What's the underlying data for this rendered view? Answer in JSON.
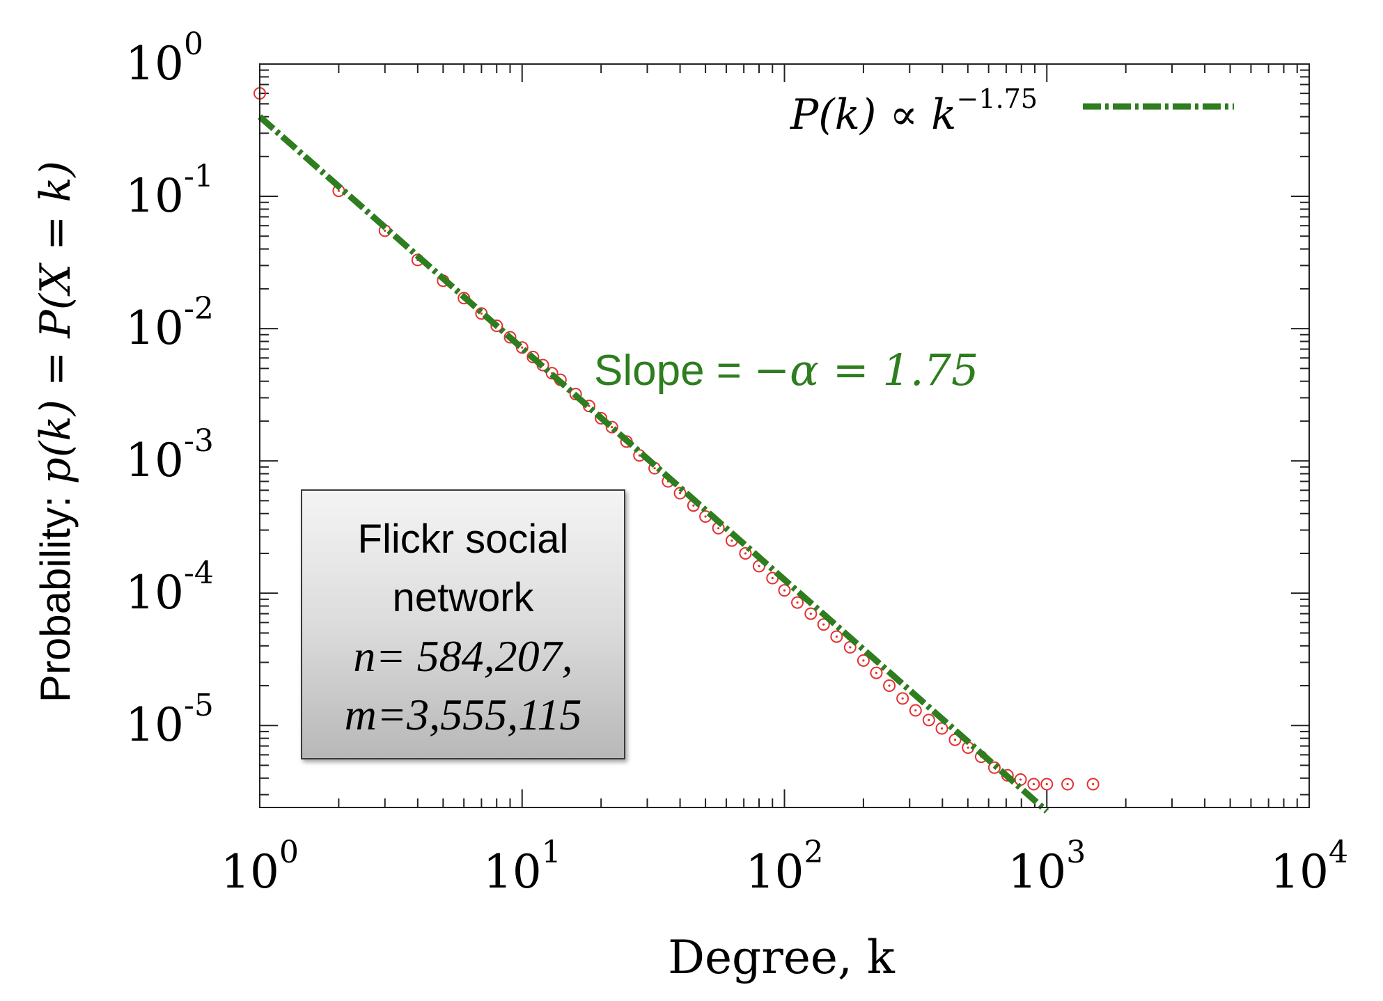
{
  "chart_data": {
    "type": "scatter",
    "xscale": "log",
    "yscale": "log",
    "xlim": [
      1,
      10000
    ],
    "ylim": [
      2.4e-06,
      1
    ],
    "x_ticks": [
      {
        "base": "10",
        "exp": "0"
      },
      {
        "base": "10",
        "exp": "1"
      },
      {
        "base": "10",
        "exp": "2"
      },
      {
        "base": "10",
        "exp": "3"
      },
      {
        "base": "10",
        "exp": "4"
      }
    ],
    "y_ticks": [
      {
        "base": "10",
        "exp": "0"
      },
      {
        "base": "10",
        "exp": "-1"
      },
      {
        "base": "10",
        "exp": "-2"
      },
      {
        "base": "10",
        "exp": "-3"
      },
      {
        "base": "10",
        "exp": "-4"
      },
      {
        "base": "10",
        "exp": "-5"
      }
    ],
    "xlabel": "Degree, k",
    "ylabel_prefix": "Probability: ",
    "ylabel_math": "p(k)  =  P(X = k)",
    "legend": {
      "label": "P(k) ∝ k",
      "label_exp": "−1.75",
      "color": "#2e7d1f",
      "placement": "top-right"
    },
    "fit_line": {
      "exponent": -1.75,
      "prefactor": 0.4,
      "x_range": [
        1,
        1000
      ],
      "color": "#2e7d1f",
      "style": "dash-dot"
    },
    "annotation": {
      "text_prefix": "Slope  = ",
      "text_math": "−α = 1.75",
      "color": "#2e7d1f"
    },
    "info_box": {
      "line1": "Flickr social",
      "line2": "network",
      "line3": "n= 584,207,",
      "line4": "m=3,555,115"
    },
    "series": [
      {
        "marker": "open-circle",
        "color": "#e53030",
        "points": [
          [
            1,
            0.6
          ],
          [
            2,
            0.11
          ],
          [
            3,
            0.055
          ],
          [
            4,
            0.033
          ],
          [
            5,
            0.023
          ],
          [
            6,
            0.017
          ],
          [
            7,
            0.013
          ],
          [
            8,
            0.0105
          ],
          [
            9,
            0.0086
          ],
          [
            10,
            0.0072
          ],
          [
            11,
            0.0061
          ],
          [
            12,
            0.0053
          ],
          [
            13,
            0.0046
          ],
          [
            14,
            0.0041
          ],
          [
            16,
            0.0032
          ],
          [
            18,
            0.0026
          ],
          [
            20,
            0.0021
          ],
          [
            22,
            0.0018
          ],
          [
            25,
            0.0014
          ],
          [
            28,
            0.0011
          ],
          [
            32,
            0.00088
          ],
          [
            36,
            0.0007
          ],
          [
            40,
            0.00057
          ],
          [
            45,
            0.00046
          ],
          [
            50,
            0.00038
          ],
          [
            56,
            0.00031
          ],
          [
            63,
            0.00025
          ],
          [
            71,
            0.0002
          ],
          [
            80,
            0.00016
          ],
          [
            90,
            0.00013
          ],
          [
            100,
            0.000105
          ],
          [
            112,
            8.5e-05
          ],
          [
            126,
            7e-05
          ],
          [
            141,
            5.8e-05
          ],
          [
            158,
            4.7e-05
          ],
          [
            178,
            3.9e-05
          ],
          [
            200,
            3.1e-05
          ],
          [
            224,
            2.5e-05
          ],
          [
            251,
            2e-05
          ],
          [
            282,
            1.6e-05
          ],
          [
            316,
            1.3e-05
          ],
          [
            355,
            1.1e-05
          ],
          [
            398,
            9.5e-06
          ],
          [
            447,
            7.8e-06
          ],
          [
            501,
            6.8e-06
          ],
          [
            562,
            5.8e-06
          ],
          [
            631,
            4.8e-06
          ],
          [
            708,
            4.2e-06
          ],
          [
            794,
            3.9e-06
          ],
          [
            891,
            3.6e-06
          ],
          [
            1000,
            3.6e-06
          ],
          [
            1200,
            3.6e-06
          ],
          [
            1500,
            3.6e-06
          ]
        ]
      }
    ]
  }
}
